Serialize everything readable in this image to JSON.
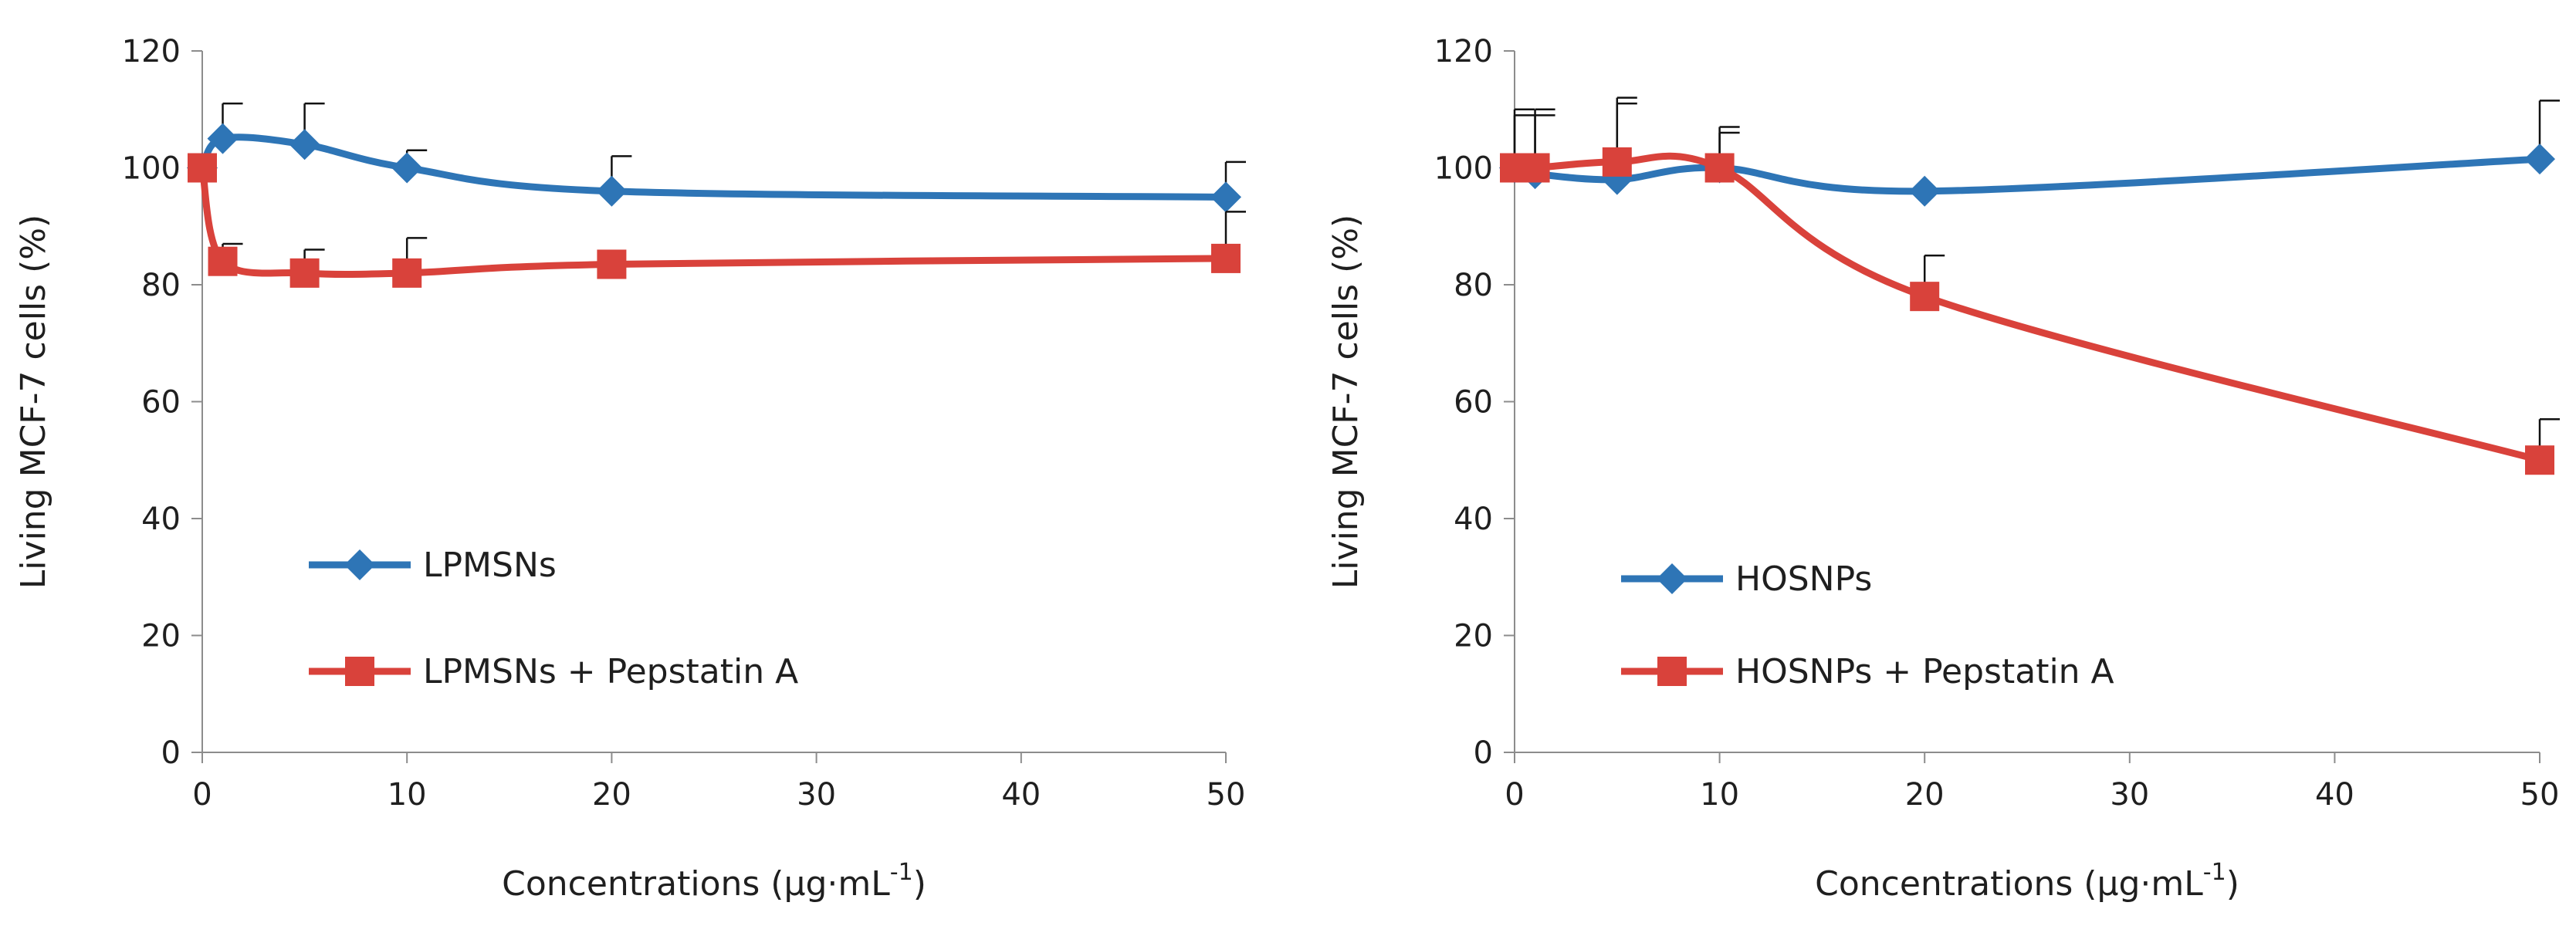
{
  "chart_data": [
    {
      "type": "line",
      "title": "",
      "xlabel": "Concentrations (μg·mL",
      "xlabel_sup": "-1",
      "xlabel_close": ")",
      "ylabel": "Living MCF-7 cells (%)",
      "xlim": [
        0,
        50
      ],
      "ylim": [
        0,
        120
      ],
      "xticks": [
        0,
        10,
        20,
        30,
        40,
        50
      ],
      "yticks": [
        0,
        20,
        40,
        60,
        80,
        100,
        120
      ],
      "legend_position": "lower-left",
      "series": [
        {
          "name": "LPMSNs",
          "color": "#2E75B6",
          "marker": "diamond",
          "x": [
            0,
            1,
            5,
            10,
            20,
            50
          ],
          "y": [
            100,
            105,
            104,
            100,
            96,
            95
          ],
          "err": [
            0,
            6,
            7,
            3,
            6,
            6
          ]
        },
        {
          "name": "LPMSNs + Pepstatin A",
          "color": "#D9423B",
          "marker": "square",
          "x": [
            0,
            1,
            5,
            10,
            20,
            50
          ],
          "y": [
            100,
            84,
            82,
            82,
            83.5,
            84.5
          ],
          "err": [
            0,
            3,
            4,
            6,
            0,
            8
          ]
        }
      ]
    },
    {
      "type": "line",
      "title": "",
      "xlabel": "Concentrations (μg·mL",
      "xlabel_sup": "-1",
      "xlabel_close": ")",
      "ylabel": "Living MCF-7 cells (%)",
      "xlim": [
        0,
        50
      ],
      "ylim": [
        0,
        120
      ],
      "xticks": [
        0,
        10,
        20,
        30,
        40,
        50
      ],
      "yticks": [
        0,
        20,
        40,
        60,
        80,
        100,
        120
      ],
      "legend_position": "lower-left",
      "series": [
        {
          "name": "HOSNPs",
          "color": "#2E75B6",
          "marker": "diamond",
          "x": [
            0,
            1,
            5,
            10,
            20,
            50
          ],
          "y": [
            100,
            99,
            98,
            100,
            96,
            101.5
          ],
          "err": [
            10,
            10,
            13,
            6,
            0,
            10
          ]
        },
        {
          "name": "HOSNPs + Pepstatin A",
          "color": "#D9423B",
          "marker": "square",
          "x": [
            0,
            1,
            5,
            10,
            20,
            50
          ],
          "y": [
            100,
            100,
            101,
            100,
            78,
            50
          ],
          "err": [
            9,
            10,
            11,
            7,
            7,
            7
          ]
        }
      ]
    }
  ]
}
